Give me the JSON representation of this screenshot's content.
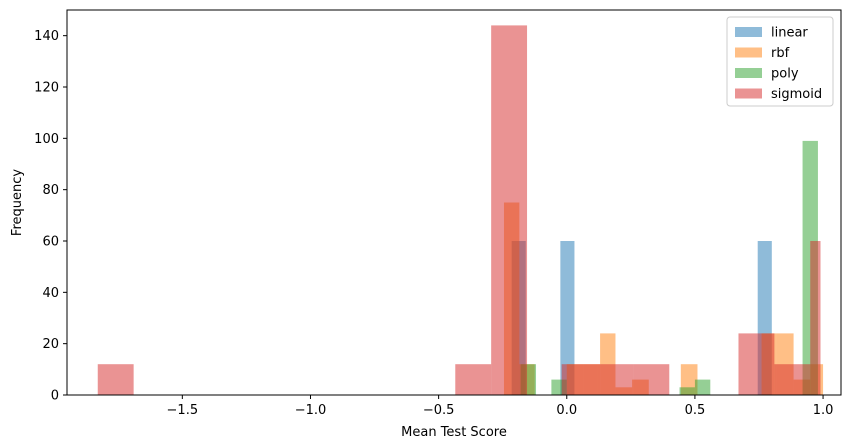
{
  "chart_data": {
    "type": "bar",
    "subtype": "overlapping-histogram",
    "title": "",
    "xlabel": "Mean Test Score",
    "ylabel": "Frequency",
    "xlim": [
      -1.95,
      1.07
    ],
    "ylim": [
      0,
      150
    ],
    "xticks": [
      -1.5,
      -1.0,
      -0.5,
      0.0,
      0.5,
      1.0
    ],
    "xtick_labels": [
      "−1.5",
      "−1.0",
      "−0.5",
      "0.0",
      "0.5",
      "1.0"
    ],
    "yticks": [
      0,
      20,
      40,
      60,
      80,
      100,
      120,
      140
    ],
    "ytick_labels": [
      "0",
      "20",
      "40",
      "60",
      "80",
      "100",
      "120",
      "140"
    ],
    "grid": false,
    "legend_position": "top-right",
    "bar_opacity": 0.5,
    "series": [
      {
        "name": "linear",
        "color": "#1f77b4",
        "bins": [
          {
            "x0": -0.215,
            "x1": -0.16,
            "y": 60
          },
          {
            "x0": -0.025,
            "x1": 0.03,
            "y": 60
          },
          {
            "x0": 0.745,
            "x1": 0.8,
            "y": 60
          }
        ]
      },
      {
        "name": "rbf",
        "color": "#ff7f0e",
        "bins": [
          {
            "x0": -0.245,
            "x1": -0.185,
            "y": 75
          },
          {
            "x0": -0.185,
            "x1": -0.125,
            "y": 12
          },
          {
            "x0": 0.0,
            "x1": 0.065,
            "y": 12
          },
          {
            "x0": 0.065,
            "x1": 0.13,
            "y": 12
          },
          {
            "x0": 0.13,
            "x1": 0.19,
            "y": 24
          },
          {
            "x0": 0.19,
            "x1": 0.255,
            "y": 3
          },
          {
            "x0": 0.255,
            "x1": 0.32,
            "y": 6
          },
          {
            "x0": 0.445,
            "x1": 0.51,
            "y": 12
          },
          {
            "x0": 0.76,
            "x1": 0.82,
            "y": 24
          },
          {
            "x0": 0.82,
            "x1": 0.885,
            "y": 24
          },
          {
            "x0": 0.885,
            "x1": 0.95,
            "y": 6
          },
          {
            "x0": 0.95,
            "x1": 1.0,
            "y": 12
          }
        ]
      },
      {
        "name": "poly",
        "color": "#2ca02c",
        "bins": [
          {
            "x0": -0.18,
            "x1": -0.12,
            "y": 12
          },
          {
            "x0": -0.06,
            "x1": 0.0,
            "y": 6
          },
          {
            "x0": 0.44,
            "x1": 0.5,
            "y": 3
          },
          {
            "x0": 0.5,
            "x1": 0.56,
            "y": 6
          },
          {
            "x0": 0.92,
            "x1": 0.98,
            "y": 99
          }
        ]
      },
      {
        "name": "sigmoid",
        "color": "#d62728",
        "bins": [
          {
            "x0": -1.83,
            "x1": -1.69,
            "y": 12
          },
          {
            "x0": -0.435,
            "x1": -0.295,
            "y": 12
          },
          {
            "x0": -0.295,
            "x1": -0.155,
            "y": 144
          },
          {
            "x0": -0.02,
            "x1": 0.12,
            "y": 12
          },
          {
            "x0": 0.12,
            "x1": 0.26,
            "y": 12
          },
          {
            "x0": 0.26,
            "x1": 0.4,
            "y": 12
          },
          {
            "x0": 0.67,
            "x1": 0.81,
            "y": 24
          },
          {
            "x0": 0.81,
            "x1": 0.95,
            "y": 12
          },
          {
            "x0": 0.95,
            "x1": 0.99,
            "y": 60
          }
        ]
      }
    ]
  }
}
